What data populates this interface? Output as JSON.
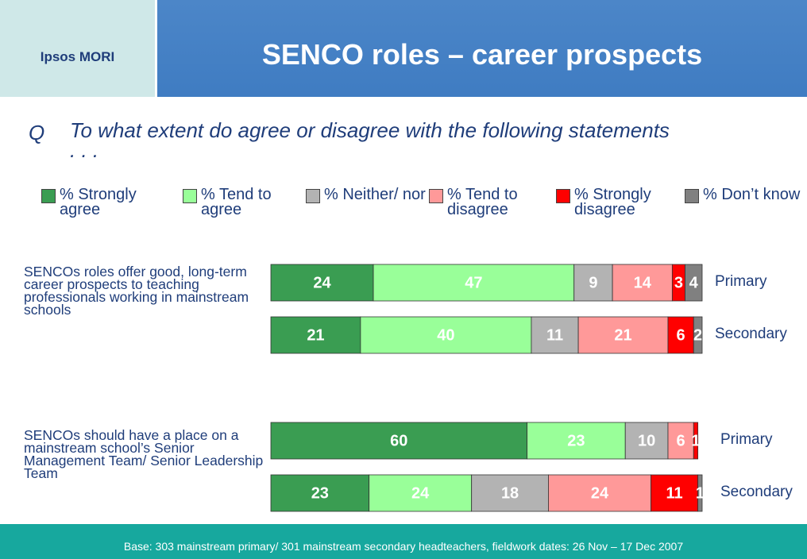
{
  "header": {
    "logo": "Ipsos MORI"
  },
  "chart_data": {
    "type": "bar",
    "orientation": "horizontal",
    "stacked": true,
    "title": "SENCO roles – career prospects",
    "question_marker": "Q",
    "question": "To what extent do agree or disagree with the following statements . . .",
    "statements": [
      "SENCOs roles offer good, long-term career prospects to teaching professionals working in mainstream schools",
      "SENCOs should have a place on a mainstream school’s Senior Management Team/ Senior Leadership Team"
    ],
    "categories": [
      "Primary",
      "Secondary",
      "Primary",
      "Secondary"
    ],
    "xlim": [
      0,
      101
    ],
    "series": [
      {
        "name": "% Strongly agree",
        "color": "#3a9d52",
        "values": [
          24,
          21,
          60,
          23
        ]
      },
      {
        "name": "% Tend to agree",
        "color": "#99ff99",
        "values": [
          47,
          40,
          23,
          24
        ]
      },
      {
        "name": "% Neither/ nor",
        "color": "#b3b3b3",
        "values": [
          9,
          11,
          10,
          18
        ]
      },
      {
        "name": "% Tend to disagree",
        "color": "#ff9999",
        "values": [
          14,
          21,
          6,
          24
        ]
      },
      {
        "name": "% Strongly disagree",
        "color": "#ff0000",
        "values": [
          3,
          6,
          1,
          11
        ]
      },
      {
        "name": "% Don’t know",
        "color": "#808080",
        "values": [
          4,
          2,
          null,
          1
        ]
      }
    ],
    "legend": "top"
  },
  "footer": {
    "base": "Base: 303 mainstream primary/ 301 mainstream secondary headteachers, fieldwork dates: 26 Nov – 17 Dec 2007"
  }
}
